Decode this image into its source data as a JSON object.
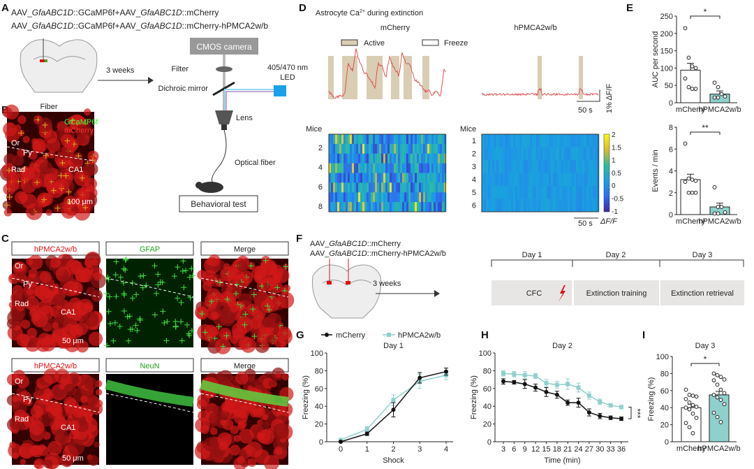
{
  "panels": {
    "A": {
      "label": "A",
      "line1": [
        "AAV_",
        "GfaABC1D",
        "::GCaMP6f+AAV_",
        "GfaABC1D",
        "::mCherry"
      ],
      "line2": [
        "AAV_",
        "GfaABC1D",
        "::GCaMP6f+AAV_",
        "GfaABC1D",
        "::mCherry-hPMCA2w/b"
      ],
      "fiber": "Fiber",
      "weeks": "3 weeks",
      "camera": "CMOS camera",
      "filter": "Filter",
      "led": [
        "405/470 nm",
        "LED"
      ],
      "mirror": "Dichroic mirror",
      "lens": "Lens",
      "optical_fiber": "Optical fiber",
      "behavior": "Behavioral test"
    },
    "B": {
      "label": "B",
      "gcamp": "GCaMP6f",
      "mcherry": "mCherry",
      "or": "Or",
      "py": "Py",
      "rad": "Rad",
      "ca1": "CA1",
      "scale": "100 μm"
    },
    "C": {
      "label": "C",
      "row1": [
        "hPMCA2w/b",
        "GFAP",
        "Merge"
      ],
      "row2": [
        "hPMCA2w/b",
        "NeuN",
        "Merge"
      ],
      "or": "Or",
      "py": "Py",
      "rad": "Rad",
      "ca1": "CA1",
      "scale": "50 μm"
    },
    "D": {
      "label": "D",
      "title_pre": "Astrocyte Ca",
      "title_sup": "2+",
      "title_post": " during extinction",
      "left": "mCherry",
      "right": "hPMCA2w/b",
      "active": "Active",
      "freeze": "Freeze",
      "trace_scale_x": "50 s",
      "trace_scale_y": "1% ΔF/F",
      "mice": "Mice",
      "left_rows": [
        "2",
        "4",
        "6",
        "8"
      ],
      "right_rows": [
        "1",
        "2",
        "3",
        "4",
        "5",
        "6"
      ],
      "heat_scale_x": "50 s",
      "colorbar_label": "ΔF/F",
      "colorbar_ticks": [
        "2",
        "1.5",
        "1",
        "0.5",
        "0",
        "-0.5",
        "-1"
      ]
    },
    "E": {
      "label": "E"
    },
    "F": {
      "label": "F",
      "line1": [
        "AAV_",
        "GfaABC1D",
        "::mCherry"
      ],
      "line2": [
        "AAV_",
        "GfaABC1D",
        "::mCherry-hPMCA2w/b"
      ],
      "weeks": "3 weeks",
      "days": [
        "Day 1",
        "Day 2",
        "Day 3"
      ],
      "stages": [
        "CFC",
        "Extinction training",
        "Extinction retrieval"
      ]
    },
    "G": {
      "label": "G"
    },
    "H": {
      "label": "H"
    },
    "I": {
      "label": "I"
    }
  },
  "colors": {
    "mcherry": "#111111",
    "hpmca": "#8fd0cc",
    "trace": "#e05050",
    "active": "#d9cdb4",
    "red": "#e01010",
    "green": "#30c030",
    "led": "#1aa0e8"
  },
  "chart_data": [
    {
      "id": "E-auc",
      "type": "bar",
      "ylabel": "AUC per second",
      "categories": [
        "mCherry",
        "hPMCA2w/b"
      ],
      "values": [
        94,
        25
      ],
      "sem": [
        20,
        9
      ],
      "points": [
        [
          215,
          130,
          105,
          100,
          70,
          45,
          40,
          40
        ],
        [
          58,
          45,
          25,
          18,
          15,
          15
        ]
      ],
      "ylim": [
        0,
        250
      ],
      "yticks": [
        "0",
        "50",
        "100",
        "150",
        "200",
        "250"
      ],
      "significance": "*"
    },
    {
      "id": "E-events",
      "type": "bar",
      "ylabel": "Events / min",
      "categories": [
        "mCherry",
        "hPMCA2w/b"
      ],
      "values": [
        3.2,
        0.7
      ],
      "sem": [
        0.5,
        0.35
      ],
      "points": [
        [
          6.5,
          3.3,
          3.2,
          3.1,
          3.0,
          2.0,
          2.0,
          2.0
        ],
        [
          2.5,
          0.7,
          0.7,
          0.2,
          0.1,
          0.1
        ]
      ],
      "ylim": [
        0,
        8
      ],
      "yticks": [
        "0",
        "2",
        "4",
        "6",
        "8"
      ],
      "significance": "**"
    },
    {
      "id": "G",
      "type": "line",
      "title": "Day 1",
      "xlabel": "Shock",
      "ylabel": "Freezing (%)",
      "x": [
        0,
        1,
        2,
        3,
        4
      ],
      "xticks": [
        "0",
        "1",
        "2",
        "3",
        "4"
      ],
      "ylim": [
        0,
        100
      ],
      "yticks": [
        "0",
        "20",
        "40",
        "60",
        "80",
        "100"
      ],
      "series": [
        {
          "name": "mCherry",
          "values": [
            0,
            9,
            36,
            72,
            79
          ],
          "sem": [
            1,
            2,
            8,
            6,
            4
          ]
        },
        {
          "name": "hPMCA2w/b",
          "values": [
            2,
            14,
            47,
            68,
            75
          ],
          "sem": [
            1,
            3,
            6,
            8,
            5
          ]
        }
      ]
    },
    {
      "id": "H",
      "type": "line",
      "title": "Day 2",
      "xlabel": "Time (min)",
      "ylabel": "Freezing (%)",
      "x": [
        3,
        6,
        9,
        12,
        15,
        18,
        21,
        24,
        27,
        30,
        33,
        36
      ],
      "xticks": [
        "3",
        "6",
        "9",
        "12",
        "15",
        "18",
        "21",
        "24",
        "27",
        "30",
        "33",
        "36"
      ],
      "ylim": [
        0,
        100
      ],
      "yticks": [
        "0",
        "20",
        "40",
        "60",
        "80",
        "100"
      ],
      "significance": "***",
      "series": [
        {
          "name": "mCherry",
          "values": [
            68,
            67,
            65,
            61,
            56,
            53,
            44,
            44,
            33,
            29,
            27,
            26
          ],
          "sem": [
            3,
            2,
            5,
            4,
            5,
            4,
            3,
            5,
            4,
            3,
            2,
            2
          ]
        },
        {
          "name": "hPMCA2w/b",
          "values": [
            77,
            76,
            75,
            74,
            66,
            64,
            65,
            61,
            52,
            45,
            41,
            39
          ],
          "sem": [
            3,
            3,
            4,
            3,
            4,
            4,
            6,
            5,
            4,
            3,
            2,
            2
          ]
        }
      ]
    },
    {
      "id": "I",
      "type": "bar",
      "title": "Day 3",
      "ylabel": "Freezing (%)",
      "categories": [
        "mCherry",
        "hPMCA2w/b"
      ],
      "values": [
        40,
        55
      ],
      "sem": [
        4,
        4
      ],
      "points": [
        [
          61,
          55,
          54,
          53,
          50,
          46,
          43,
          41,
          40,
          38,
          33,
          28,
          22,
          17,
          10
        ],
        [
          80,
          78,
          76,
          73,
          72,
          67,
          61,
          57,
          55,
          52,
          49,
          44,
          34,
          29,
          23
        ]
      ],
      "ylim": [
        0,
        100
      ],
      "yticks": [
        "0",
        "20",
        "40",
        "60",
        "80",
        "100"
      ],
      "significance": "*"
    },
    {
      "id": "D-heatmap",
      "type": "heatmap",
      "colorbar_range": [
        -1,
        2
      ],
      "rows": {
        "mCherry": 8,
        "hPMCA2w/b": 6
      }
    }
  ]
}
